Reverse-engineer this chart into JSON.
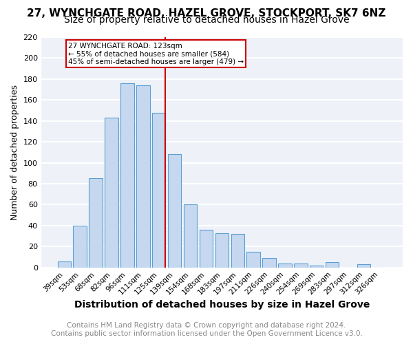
{
  "title1": "27, WYNCHGATE ROAD, HAZEL GROVE, STOCKPORT, SK7 6NZ",
  "title2": "Size of property relative to detached houses in Hazel Grove",
  "xlabel": "Distribution of detached houses by size in Hazel Grove",
  "ylabel": "Number of detached properties",
  "categories": [
    "39sqm",
    "53sqm",
    "68sqm",
    "82sqm",
    "96sqm",
    "111sqm",
    "125sqm",
    "139sqm",
    "154sqm",
    "168sqm",
    "183sqm",
    "197sqm",
    "211sqm",
    "226sqm",
    "240sqm",
    "254sqm",
    "269sqm",
    "283sqm",
    "297sqm",
    "312sqm",
    "326sqm"
  ],
  "values": [
    6,
    40,
    85,
    143,
    176,
    174,
    148,
    108,
    60,
    36,
    33,
    32,
    15,
    9,
    4,
    4,
    2,
    5,
    0,
    3,
    0
  ],
  "bar_color": "#c5d8f0",
  "bar_edge_color": "#5a9fd4",
  "vline_index": 6,
  "vline_color": "#cc0000",
  "annotation_title": "27 WYNCHGATE ROAD: 123sqm",
  "annotation_line1": "← 55% of detached houses are smaller (584)",
  "annotation_line2": "45% of semi-detached houses are larger (479) →",
  "annotation_box_color": "#cc0000",
  "ylim": [
    0,
    220
  ],
  "yticks": [
    0,
    20,
    40,
    60,
    80,
    100,
    120,
    140,
    160,
    180,
    200,
    220
  ],
  "footer1": "Contains HM Land Registry data © Crown copyright and database right 2024.",
  "footer2": "Contains public sector information licensed under the Open Government Licence v3.0.",
  "bg_color": "#eef2f8",
  "grid_color": "#ffffff",
  "title1_fontsize": 11,
  "title2_fontsize": 10,
  "xlabel_fontsize": 10,
  "ylabel_fontsize": 9,
  "footer_color": "#888888",
  "footer_fontsize": 7.5
}
